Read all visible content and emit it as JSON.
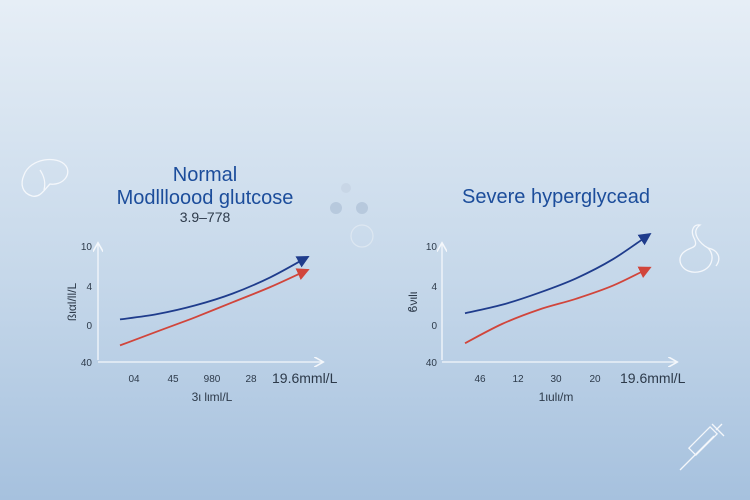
{
  "colors": {
    "background_top": "#e6eef6",
    "background_bottom": "#a6c1de",
    "title": "#1c4d9b",
    "axis": "#f4f7fb",
    "text": "#2d3a4a"
  },
  "icons": [
    "liver-outline-icon",
    "molecule-icon",
    "stomach-outline-icon",
    "syringe-icon"
  ],
  "chart_data": [
    {
      "type": "line",
      "title_line1": "Normal",
      "title_line2": "Modllloood glutcose",
      "subtitle": "3.9–778",
      "ylabel": "ßιαl/ll/L",
      "xlabel": "3ι lιml/L",
      "x_end_label": "19.6mml/L",
      "y_tick_labels": [
        "10",
        "4",
        "0",
        "40"
      ],
      "x_tick_labels": [
        "04",
        "45",
        "980",
        "28"
      ],
      "ylim": [
        0,
        10
      ],
      "xlim": [
        0,
        10
      ],
      "grid": false,
      "series": [
        {
          "color": "#1f3c8c",
          "x": [
            0,
            2,
            4,
            6,
            8,
            10
          ],
          "y": [
            3.2,
            3.7,
            4.5,
            5.6,
            7.1,
            9.0
          ]
        },
        {
          "color": "#d1453b",
          "x": [
            0,
            2,
            4,
            6,
            8,
            10
          ],
          "y": [
            0.8,
            2.1,
            3.4,
            4.8,
            6.2,
            7.8
          ]
        }
      ]
    },
    {
      "type": "line",
      "title_line1": "Severe hyperglycead",
      "subtitle": "",
      "ylabel": "ϐνιlι",
      "xlabel": "1ιulι/m",
      "x_end_label": "19.6mml/L",
      "y_tick_labels": [
        "10",
        "4",
        "0",
        "40"
      ],
      "x_tick_labels": [
        "46",
        "12",
        "30",
        "20"
      ],
      "ylim": [
        0,
        10
      ],
      "xlim": [
        0,
        10
      ],
      "grid": false,
      "series": [
        {
          "color": "#1f3c8c",
          "x": [
            0,
            2,
            4,
            6,
            8,
            10
          ],
          "y": [
            3.4,
            4.1,
            5.1,
            6.3,
            7.9,
            10.0
          ]
        },
        {
          "color": "#d1453b",
          "x": [
            0,
            2,
            4,
            6,
            8,
            10
          ],
          "y": [
            0.9,
            2.5,
            3.7,
            4.6,
            5.7,
            7.2
          ]
        }
      ]
    }
  ]
}
